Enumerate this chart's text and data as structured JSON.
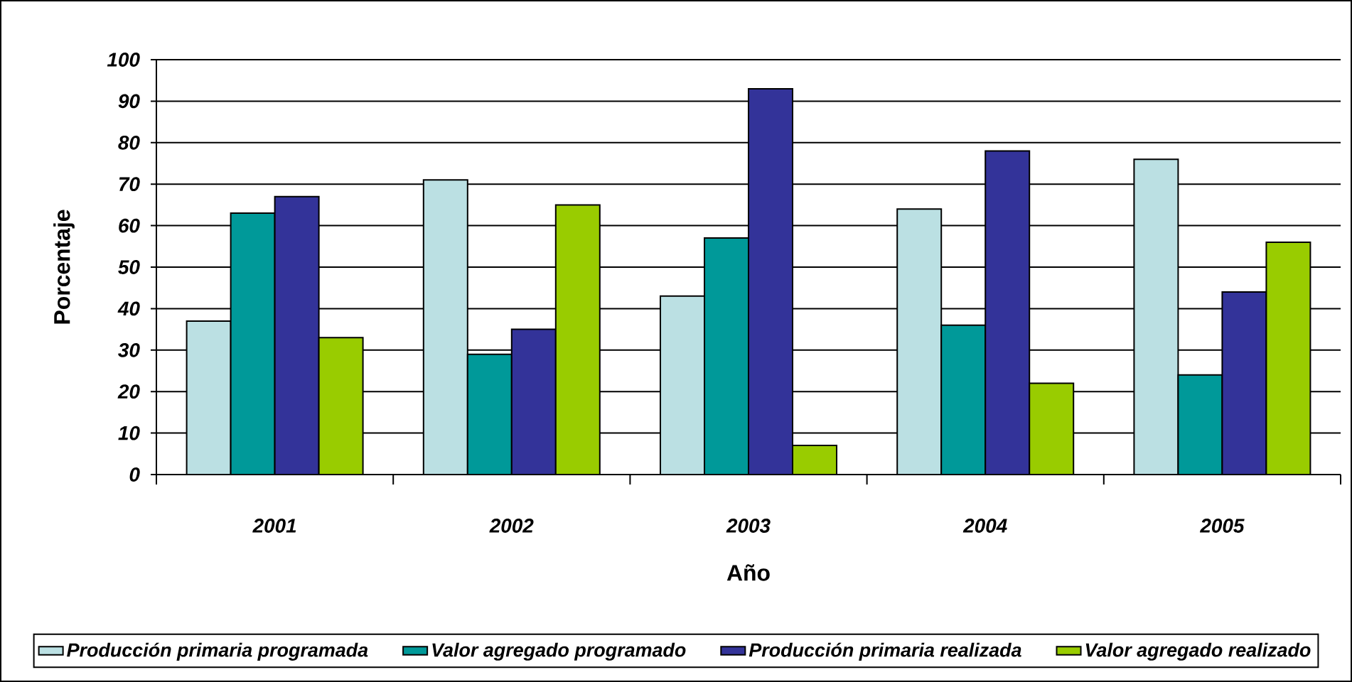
{
  "chart_data": {
    "type": "bar",
    "xlabel": "Año",
    "ylabel": "Porcentaje",
    "categories": [
      "2001",
      "2002",
      "2003",
      "2004",
      "2005"
    ],
    "series": [
      {
        "name": "Producción primaria programada",
        "color": "#bbe0e3",
        "values": [
          37,
          71,
          43,
          64,
          76
        ]
      },
      {
        "name": "Valor agregado programado",
        "color": "#009999",
        "values": [
          63,
          29,
          57,
          36,
          24
        ]
      },
      {
        "name": "Producción primaria realizada",
        "color": "#333399",
        "values": [
          67,
          35,
          93,
          78,
          44
        ]
      },
      {
        "name": "Valor agregado realizado",
        "color": "#99cc00",
        "values": [
          33,
          65,
          7,
          22,
          56
        ]
      }
    ],
    "ylim": [
      0,
      100
    ],
    "yticks": [
      0,
      10,
      20,
      30,
      40,
      50,
      60,
      70,
      80,
      90,
      100
    ],
    "grid": "y",
    "legend": "bottom"
  }
}
